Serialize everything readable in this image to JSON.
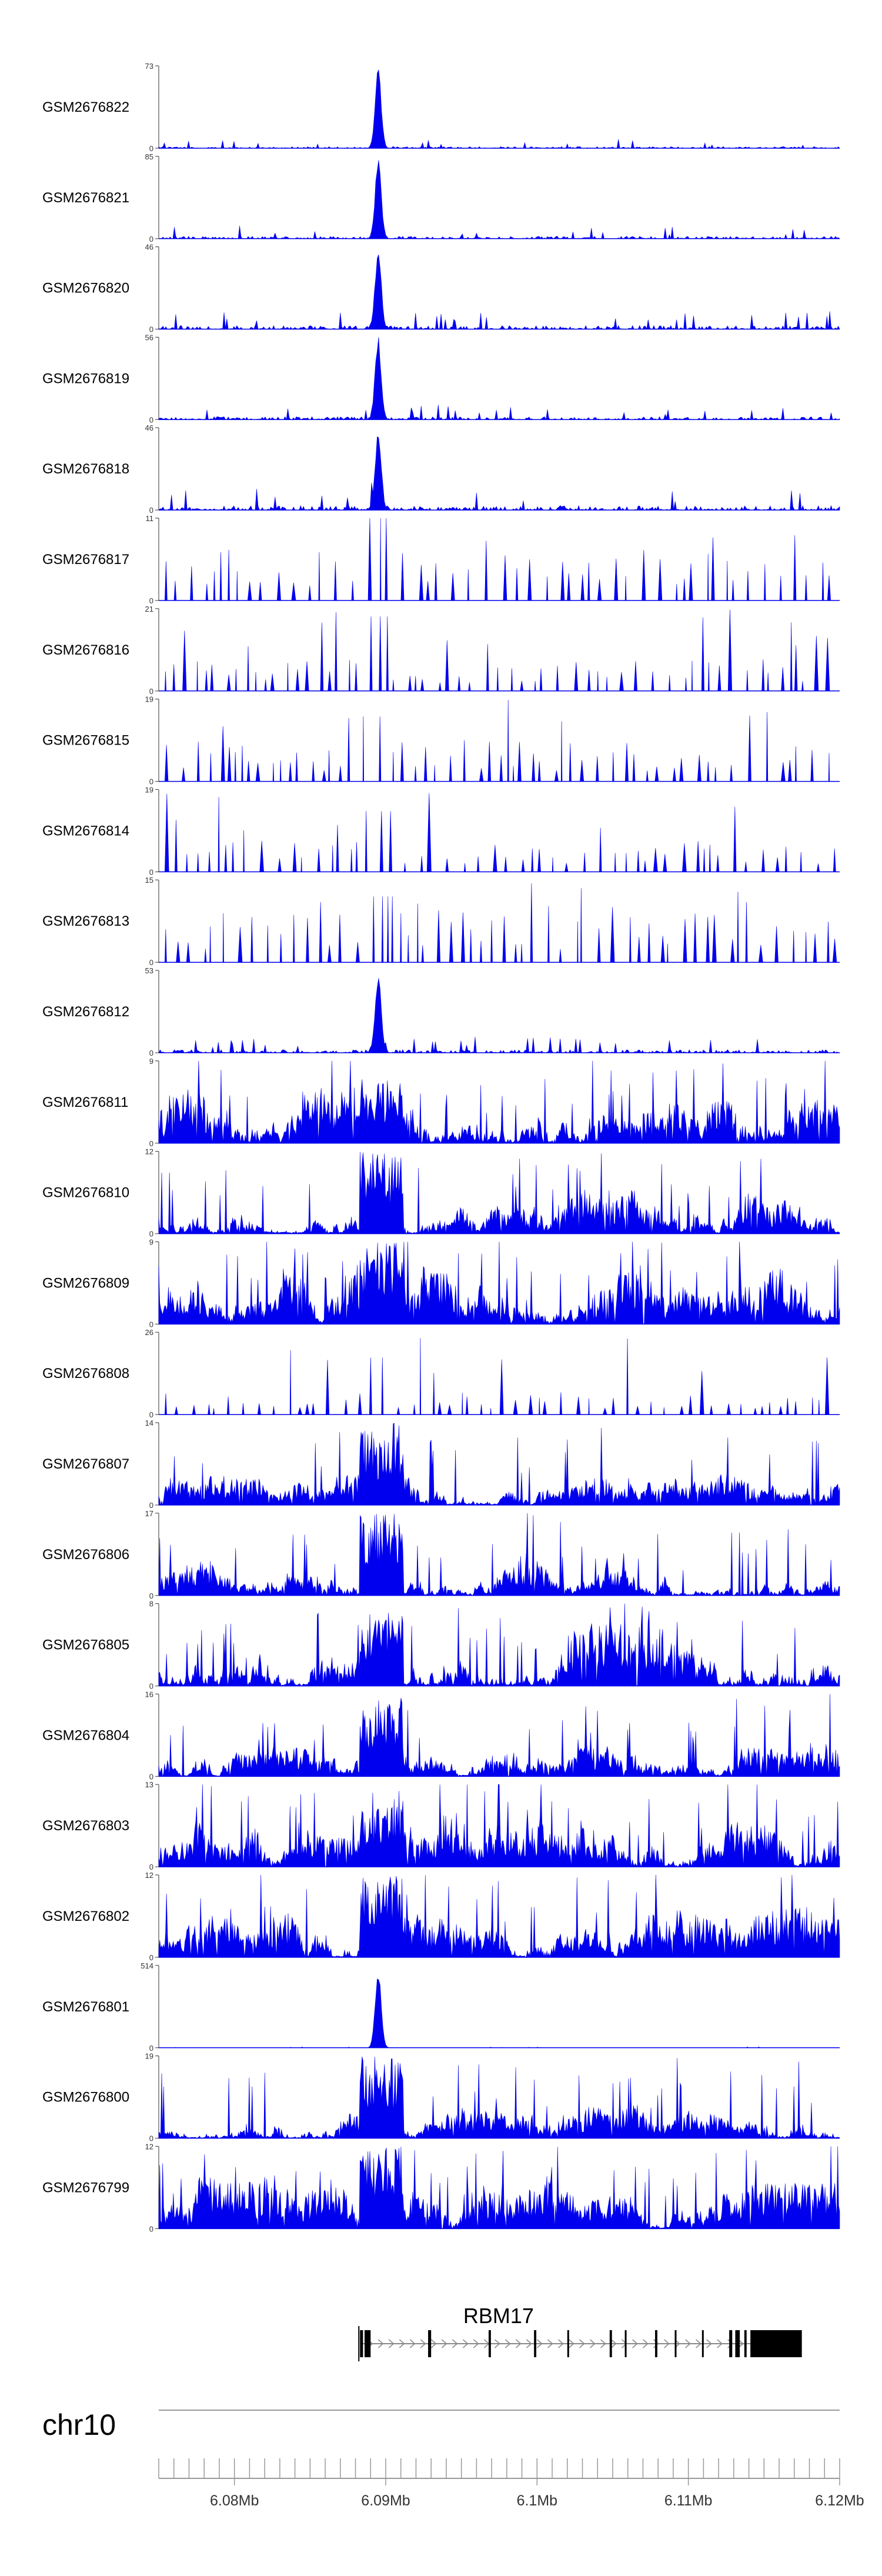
{
  "chart_data": {
    "type": "area",
    "chromosome": "chr10",
    "x_range_bp": [
      6075000,
      6120000
    ],
    "peak_region_bp": [
      6088600,
      6090400
    ],
    "tracks": [
      {
        "name": "GSM2676822",
        "ymax": 73,
        "peak": 72,
        "background": 3,
        "style": "quiet",
        "seed": 11
      },
      {
        "name": "GSM2676821",
        "ymax": 85,
        "peak": 84,
        "background": 5,
        "style": "quiet",
        "seed": 12
      },
      {
        "name": "GSM2676820",
        "ymax": 46,
        "peak": 46,
        "background": 4,
        "style": "quiet",
        "seed": 13
      },
      {
        "name": "GSM2676819",
        "ymax": 56,
        "peak": 55,
        "background": 4,
        "style": "quiet",
        "seed": 14
      },
      {
        "name": "GSM2676818",
        "ymax": 46,
        "peak": 44,
        "background": 5,
        "style": "quiet",
        "seed": 15
      },
      {
        "name": "GSM2676817",
        "ymax": 11,
        "peak": 11,
        "background": 6,
        "style": "sparse",
        "seed": 16
      },
      {
        "name": "GSM2676816",
        "ymax": 21,
        "peak": 19,
        "background": 7,
        "style": "sparse",
        "seed": 17
      },
      {
        "name": "GSM2676815",
        "ymax": 19,
        "peak": 15,
        "background": 8,
        "style": "sparse",
        "seed": 18
      },
      {
        "name": "GSM2676814",
        "ymax": 19,
        "peak": 14,
        "background": 6,
        "style": "sparse",
        "seed": 19
      },
      {
        "name": "GSM2676813",
        "ymax": 15,
        "peak": 12,
        "background": 8,
        "style": "sparse",
        "seed": 20
      },
      {
        "name": "GSM2676812",
        "ymax": 53,
        "peak": 50,
        "background": 4,
        "style": "quiet",
        "seed": 21
      },
      {
        "name": "GSM2676811",
        "ymax": 9,
        "peak": 7,
        "background": 5,
        "style": "dense",
        "seed": 22
      },
      {
        "name": "GSM2676810",
        "ymax": 12,
        "peak": 12,
        "background": 5,
        "style": "dense",
        "seed": 23
      },
      {
        "name": "GSM2676809",
        "ymax": 9,
        "peak": 9,
        "background": 5,
        "style": "dense",
        "seed": 24
      },
      {
        "name": "GSM2676808",
        "ymax": 26,
        "peak": 18,
        "background": 6,
        "style": "sparse",
        "seed": 25
      },
      {
        "name": "GSM2676807",
        "ymax": 14,
        "peak": 14,
        "background": 4,
        "style": "dense",
        "seed": 26
      },
      {
        "name": "GSM2676806",
        "ymax": 17,
        "peak": 17,
        "background": 6,
        "style": "dense",
        "seed": 27
      },
      {
        "name": "GSM2676805",
        "ymax": 8,
        "peak": 7,
        "background": 5,
        "style": "dense",
        "seed": 28
      },
      {
        "name": "GSM2676804",
        "ymax": 16,
        "peak": 16,
        "background": 5,
        "style": "dense",
        "seed": 29
      },
      {
        "name": "GSM2676803",
        "ymax": 13,
        "peak": 10,
        "background": 6,
        "style": "dense",
        "seed": 30
      },
      {
        "name": "GSM2676802",
        "ymax": 12,
        "peak": 12,
        "background": 6,
        "style": "dense",
        "seed": 31
      },
      {
        "name": "GSM2676801",
        "ymax": 514,
        "peak": 500,
        "background": 2,
        "style": "quiet",
        "seed": 32
      },
      {
        "name": "GSM2676800",
        "ymax": 19,
        "peak": 19,
        "background": 6,
        "style": "dense",
        "seed": 33
      },
      {
        "name": "GSM2676799",
        "ymax": 12,
        "peak": 12,
        "background": 6,
        "style": "dense",
        "seed": 34
      }
    ],
    "gene": {
      "name": "RBM17",
      "strand": "+",
      "tx_start_bp": 6088300,
      "tx_end_bp": 6117500,
      "exons_bp": [
        [
          6088300,
          6088500
        ],
        [
          6088600,
          6089000
        ],
        [
          6092800,
          6093000
        ],
        [
          6096800,
          6096950
        ],
        [
          6099800,
          6099950
        ],
        [
          6102000,
          6102100
        ],
        [
          6104800,
          6104950
        ],
        [
          6105800,
          6105900
        ],
        [
          6107800,
          6107950
        ],
        [
          6109100,
          6109200
        ],
        [
          6110900,
          6111000
        ],
        [
          6112700,
          6112900
        ],
        [
          6113100,
          6113400
        ],
        [
          6113700,
          6113850
        ],
        [
          6114100,
          6117500
        ]
      ]
    },
    "axis": {
      "ticks_bp": [
        6075000,
        6076000,
        6077000,
        6078000,
        6079000,
        6080000,
        6081000,
        6082000,
        6083000,
        6084000,
        6085000,
        6086000,
        6087000,
        6088000,
        6089000,
        6090000,
        6091000,
        6092000,
        6093000,
        6094000,
        6095000,
        6096000,
        6097000,
        6098000,
        6099000,
        6100000,
        6101000,
        6102000,
        6103000,
        6104000,
        6105000,
        6106000,
        6107000,
        6108000,
        6109000,
        6110000,
        6111000,
        6112000,
        6113000,
        6114000,
        6115000,
        6116000,
        6117000,
        6118000,
        6119000,
        6120000
      ],
      "major_ticks": [
        {
          "bp": 6080000,
          "label": "6.08Mb"
        },
        {
          "bp": 6090000,
          "label": "6.09Mb"
        },
        {
          "bp": 6100000,
          "label": "6.1Mb"
        },
        {
          "bp": 6110000,
          "label": "6.11Mb"
        },
        {
          "bp": 6120000,
          "label": "6.12Mb"
        }
      ]
    },
    "colors": {
      "signal": "#0000ee",
      "axis": "#555555",
      "gene": "#000000",
      "intron_arrows": "#888888"
    }
  }
}
